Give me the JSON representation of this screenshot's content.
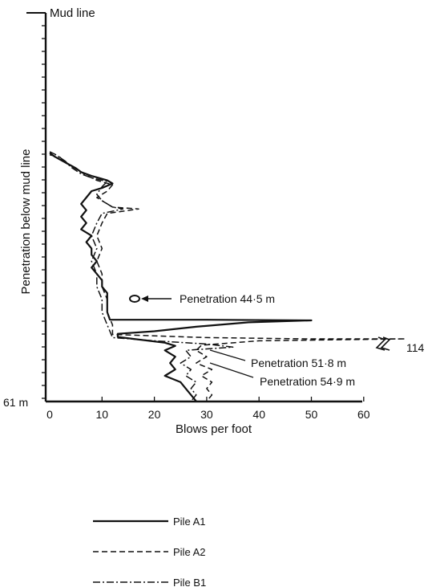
{
  "chart_data": {
    "type": "line",
    "orientation": "depth-profile",
    "title": "",
    "xlabel": "Blows per foot",
    "ylabel": "Penetration below mud line",
    "top_label": "Mud line",
    "bottom_label": "61 m",
    "xlim": [
      0,
      60
    ],
    "ylim_m": [
      0,
      61
    ],
    "x_ticks": [
      "0",
      "10",
      "20",
      "30",
      "40",
      "50",
      "60"
    ],
    "grid": false,
    "legend_position": "bottom",
    "series": [
      {
        "name": "Pile A1",
        "style": "solid",
        "points": [
          [
            0,
            22
          ],
          [
            1,
            22.6
          ],
          [
            3,
            23.5
          ],
          [
            5,
            24.4
          ],
          [
            6,
            25
          ],
          [
            8,
            25.6
          ],
          [
            11,
            26.3
          ],
          [
            12,
            26.8
          ],
          [
            10,
            27.5
          ],
          [
            8,
            28
          ],
          [
            7,
            29
          ],
          [
            6,
            30
          ],
          [
            7,
            31
          ],
          [
            6,
            32
          ],
          [
            7,
            33
          ],
          [
            6,
            34
          ],
          [
            8,
            35
          ],
          [
            7,
            36
          ],
          [
            8,
            37
          ],
          [
            8,
            38
          ],
          [
            9,
            39
          ],
          [
            8,
            40
          ],
          [
            9,
            41
          ],
          [
            10,
            42
          ],
          [
            10,
            43
          ],
          [
            11,
            44
          ],
          [
            11,
            45
          ],
          [
            11,
            46
          ],
          [
            11,
            47
          ],
          [
            11.5,
            48.2
          ],
          [
            30,
            48.2
          ],
          [
            50,
            48.3
          ],
          [
            38,
            48.6
          ],
          [
            28,
            49.3
          ],
          [
            20,
            50
          ],
          [
            13,
            50.4
          ],
          [
            13,
            50.9
          ],
          [
            22,
            51.8
          ],
          [
            24,
            52.3
          ],
          [
            22,
            53
          ],
          [
            24,
            54
          ],
          [
            23,
            55
          ],
          [
            24,
            56
          ],
          [
            22,
            57
          ],
          [
            25,
            58
          ],
          [
            26,
            59
          ],
          [
            27,
            60
          ],
          [
            28,
            61
          ]
        ]
      },
      {
        "name": "Pile A2",
        "style": "dashed",
        "points": [
          [
            0,
            22.3
          ],
          [
            2,
            22.7
          ],
          [
            3,
            23.5
          ],
          [
            5,
            24.5
          ],
          [
            7,
            25.5
          ],
          [
            9,
            26.3
          ],
          [
            12,
            27
          ],
          [
            11,
            28
          ],
          [
            9,
            29
          ],
          [
            12,
            30.5
          ],
          [
            17,
            30.8
          ],
          [
            11,
            31.5
          ],
          [
            10,
            33
          ],
          [
            9,
            35
          ],
          [
            10,
            37
          ],
          [
            9,
            39
          ],
          [
            10,
            41
          ],
          [
            10,
            43
          ],
          [
            11,
            45
          ],
          [
            11,
            47
          ],
          [
            12,
            49
          ],
          [
            12,
            50.5
          ],
          [
            30,
            51
          ],
          [
            49,
            51.2
          ],
          [
            63,
            51.2
          ],
          [
            68,
            51.2
          ],
          [
            40,
            51.5
          ],
          [
            29,
            52.2
          ],
          [
            28,
            53
          ],
          [
            30,
            54
          ],
          [
            28,
            55
          ],
          [
            31,
            56
          ],
          [
            29,
            57
          ],
          [
            31,
            58
          ],
          [
            30,
            59
          ],
          [
            31,
            60
          ],
          [
            30,
            61
          ]
        ]
      },
      {
        "name": "Pile B1",
        "style": "dashdot",
        "points": [
          [
            0,
            21.8
          ],
          [
            1,
            22.2
          ],
          [
            3,
            23.3
          ],
          [
            4,
            24.2
          ],
          [
            6,
            25.3
          ],
          [
            8,
            25.9
          ],
          [
            11,
            26.5
          ],
          [
            10,
            27.3
          ],
          [
            9,
            28.5
          ],
          [
            10,
            29.5
          ],
          [
            12,
            30.5
          ],
          [
            14,
            30.8
          ],
          [
            10,
            31.5
          ],
          [
            9,
            33
          ],
          [
            8,
            35
          ],
          [
            9,
            37
          ],
          [
            8,
            39
          ],
          [
            9,
            41
          ],
          [
            9,
            43
          ],
          [
            10,
            45
          ],
          [
            10,
            47
          ],
          [
            11,
            49
          ],
          [
            12,
            51
          ],
          [
            20,
            51.5
          ],
          [
            30,
            52
          ],
          [
            35,
            52.5
          ],
          [
            26,
            53
          ],
          [
            27,
            54
          ],
          [
            25,
            55
          ],
          [
            27,
            56
          ],
          [
            26,
            57
          ],
          [
            28,
            58
          ],
          [
            27,
            59
          ],
          [
            28,
            60
          ],
          [
            27,
            61
          ]
        ]
      }
    ],
    "annotations": [
      {
        "text": "Penetration 44·5 m",
        "x": 17,
        "depth_m": 44.5
      },
      {
        "text": "Penetration 51·8 m",
        "x": 34,
        "depth_m": 51.8
      },
      {
        "text": "Penetration 54·9 m",
        "x": 34,
        "depth_m": 54.9
      },
      {
        "text": "114",
        "x": 62,
        "depth_m": 51.2
      }
    ]
  }
}
